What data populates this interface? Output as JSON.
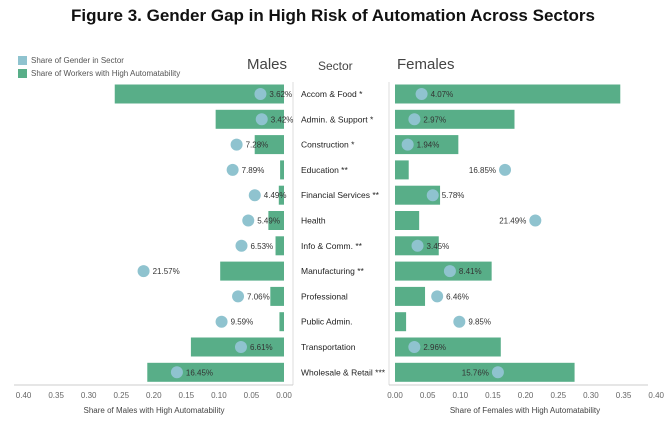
{
  "colors": {
    "bar": "#58ae88",
    "dot": "#8fc3cf"
  },
  "chart_data": {
    "type": "bar",
    "title": "Figure 3.  Gender Gap in High Risk of Automation Across Sectors",
    "legend": {
      "placement": "top-left",
      "items": [
        {
          "label": "Share of Gender in Sector",
          "kind": "dot"
        },
        {
          "label": "Share of Workers with High Automatability",
          "kind": "bar"
        }
      ]
    },
    "headers": {
      "males": "Males",
      "sector": "Sector",
      "females": "Females"
    },
    "categories": [
      "Accom & Food *",
      "Admin. & Support *",
      "Construction *",
      "Education **",
      "Financial Services **",
      "Health",
      "Info & Comm. **",
      "Manufacturing **",
      "Professional",
      "Public Admin.",
      "Transportation",
      "Wholesale & Retail ***"
    ],
    "males": {
      "xlabel": "Share of Males with High Automatability",
      "xlim": [
        0.4,
        0.0
      ],
      "ticks": [
        "0.40",
        "0.35",
        "0.30",
        "0.25",
        "0.20",
        "0.15",
        "0.10",
        "0.05",
        "0.00"
      ],
      "automatability": [
        0.26,
        0.105,
        0.045,
        0.006,
        0.008,
        0.024,
        0.013,
        0.098,
        0.021,
        0.007,
        0.143,
        0.21
      ],
      "gender_share": [
        0.0362,
        0.0342,
        0.0728,
        0.0789,
        0.0449,
        0.0549,
        0.0653,
        0.2157,
        0.0706,
        0.0959,
        0.0661,
        0.1645
      ],
      "gender_share_labels": [
        "3.62%",
        "3.42%",
        "7.28%",
        "7.89%",
        "4.49%",
        "5.49%",
        "6.53%",
        "21.57%",
        "7.06%",
        "9.59%",
        "6.61%",
        "16.45%"
      ]
    },
    "females": {
      "xlabel": "Share of Females with High Automatability",
      "xlim": [
        0.0,
        0.4
      ],
      "ticks": [
        "0.00",
        "0.05",
        "0.10",
        "0.15",
        "0.20",
        "0.25",
        "0.30",
        "0.35",
        "0.40"
      ],
      "automatability": [
        0.345,
        0.183,
        0.097,
        0.021,
        0.069,
        0.037,
        0.067,
        0.148,
        0.046,
        0.017,
        0.162,
        0.275
      ],
      "gender_share": [
        0.0407,
        0.0297,
        0.0194,
        0.1685,
        0.0578,
        0.2149,
        0.0345,
        0.0841,
        0.0646,
        0.0985,
        0.0296,
        0.1576
      ],
      "gender_share_labels": [
        "4.07%",
        "2.97%",
        "1.94%",
        "16.85%",
        "5.78%",
        "21.49%",
        "3.45%",
        "8.41%",
        "6.46%",
        "9.85%",
        "2.96%",
        "15.76%"
      ]
    },
    "grid": false
  }
}
